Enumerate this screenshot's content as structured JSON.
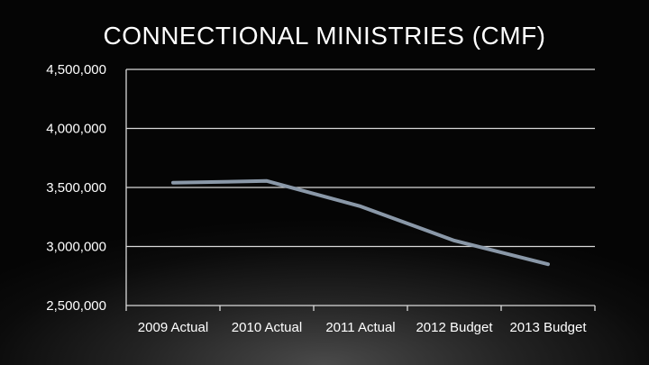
{
  "title": "CONNECTIONAL MINISTRIES (CMF)",
  "colors": {
    "background": "#0b0b0b",
    "line": "#8a98a8",
    "grid": "#d9d9d9",
    "text": "#ffffff"
  },
  "chart_data": {
    "type": "line",
    "title": "CONNECTIONAL MINISTRIES (CMF)",
    "xlabel": "",
    "ylabel": "",
    "categories": [
      "2009 Actual",
      "2010 Actual",
      "2011 Actual",
      "2012 Budget",
      "2013 Budget"
    ],
    "series": [
      {
        "values": [
          3540000,
          3555000,
          3340000,
          3050000,
          2850000
        ]
      }
    ],
    "ylim": [
      2500000,
      4500000
    ],
    "yticks": [
      2500000,
      3000000,
      3500000,
      4000000,
      4500000
    ],
    "ytick_labels": [
      "2,500,000",
      "3,000,000",
      "3,500,000",
      "4,000,000",
      "4,500,000"
    ],
    "grid": true,
    "legend": "none"
  }
}
